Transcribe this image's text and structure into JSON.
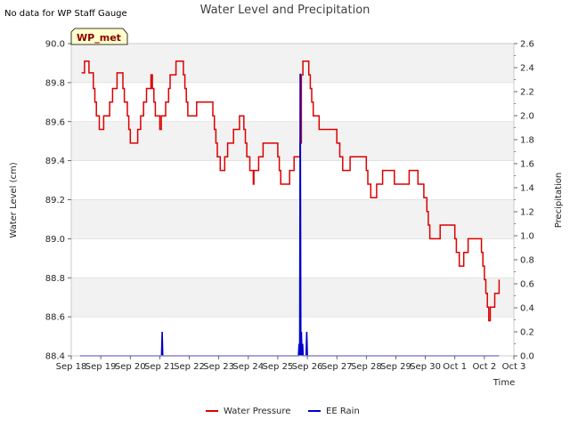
{
  "chart_data": {
    "type": "line",
    "title": "Water Level and Precipitation",
    "note": "No data for WP Staff Gauge",
    "badge": "WP_met",
    "xlabel": "Time",
    "ylabel_left": "Water Level (cm)",
    "ylabel_right": "Precipitation",
    "x_ticks": [
      "Sep 18",
      "Sep 19",
      "Sep 20",
      "Sep 21",
      "Sep 22",
      "Sep 23",
      "Sep 24",
      "Sep 25",
      "Sep 26",
      "Sep 27",
      "Sep 28",
      "Sep 29",
      "Sep 30",
      "Oct 1",
      "Oct 2",
      "Oct 3"
    ],
    "xlim_days": [
      0,
      15
    ],
    "ylim_left": [
      88.4,
      90.0
    ],
    "ylim_right": [
      0.0,
      2.6
    ],
    "y_ticks_left": [
      "88.4",
      "88.6",
      "88.8",
      "89.0",
      "89.2",
      "89.4",
      "89.6",
      "89.8",
      "90.0"
    ],
    "y_ticks_right": [
      "0.0",
      "0.2",
      "0.4",
      "0.6",
      "0.8",
      "1.0",
      "1.2",
      "1.4",
      "1.6",
      "1.8",
      "2.0",
      "2.2",
      "2.4",
      "2.6"
    ],
    "grid": true,
    "legend_position": "bottom-center",
    "series": [
      {
        "name": "Water Pressure",
        "color": "#dd0000",
        "axis": "left",
        "points": [
          [
            0.35,
            89.85
          ],
          [
            0.45,
            89.91
          ],
          [
            0.55,
            89.91
          ],
          [
            0.6,
            89.85
          ],
          [
            0.7,
            89.85
          ],
          [
            0.75,
            89.77
          ],
          [
            0.8,
            89.7
          ],
          [
            0.85,
            89.63
          ],
          [
            0.95,
            89.56
          ],
          [
            1.05,
            89.56
          ],
          [
            1.1,
            89.63
          ],
          [
            1.25,
            89.63
          ],
          [
            1.3,
            89.7
          ],
          [
            1.4,
            89.77
          ],
          [
            1.5,
            89.77
          ],
          [
            1.55,
            89.85
          ],
          [
            1.7,
            89.85
          ],
          [
            1.75,
            89.77
          ],
          [
            1.8,
            89.7
          ],
          [
            1.9,
            89.63
          ],
          [
            1.95,
            89.56
          ],
          [
            2.0,
            89.49
          ],
          [
            2.2,
            89.49
          ],
          [
            2.25,
            89.56
          ],
          [
            2.35,
            89.63
          ],
          [
            2.45,
            89.7
          ],
          [
            2.55,
            89.77
          ],
          [
            2.65,
            89.77
          ],
          [
            2.7,
            89.84
          ],
          [
            2.75,
            89.77
          ],
          [
            2.8,
            89.7
          ],
          [
            2.85,
            89.63
          ],
          [
            2.95,
            89.63
          ],
          [
            3.0,
            89.56
          ],
          [
            3.05,
            89.63
          ],
          [
            3.15,
            89.63
          ],
          [
            3.2,
            89.7
          ],
          [
            3.3,
            89.77
          ],
          [
            3.35,
            89.84
          ],
          [
            3.5,
            89.84
          ],
          [
            3.55,
            89.91
          ],
          [
            3.75,
            89.91
          ],
          [
            3.8,
            89.84
          ],
          [
            3.85,
            89.77
          ],
          [
            3.9,
            89.7
          ],
          [
            3.95,
            89.63
          ],
          [
            4.2,
            89.63
          ],
          [
            4.25,
            89.7
          ],
          [
            4.75,
            89.7
          ],
          [
            4.8,
            89.63
          ],
          [
            4.85,
            89.56
          ],
          [
            4.9,
            89.49
          ],
          [
            4.95,
            89.42
          ],
          [
            5.05,
            89.35
          ],
          [
            5.15,
            89.35
          ],
          [
            5.2,
            89.42
          ],
          [
            5.3,
            89.49
          ],
          [
            5.45,
            89.49
          ],
          [
            5.5,
            89.56
          ],
          [
            5.65,
            89.56
          ],
          [
            5.7,
            89.63
          ],
          [
            5.8,
            89.63
          ],
          [
            5.85,
            89.56
          ],
          [
            5.9,
            89.49
          ],
          [
            5.95,
            89.42
          ],
          [
            6.05,
            89.35
          ],
          [
            6.15,
            89.35
          ],
          [
            6.17,
            89.28
          ],
          [
            6.19,
            89.35
          ],
          [
            6.3,
            89.35
          ],
          [
            6.35,
            89.42
          ],
          [
            6.45,
            89.42
          ],
          [
            6.5,
            89.49
          ],
          [
            6.95,
            89.49
          ],
          [
            7.0,
            89.42
          ],
          [
            7.05,
            89.35
          ],
          [
            7.1,
            89.28
          ],
          [
            7.35,
            89.28
          ],
          [
            7.4,
            89.35
          ],
          [
            7.5,
            89.35
          ],
          [
            7.55,
            89.42
          ],
          [
            7.7,
            89.42
          ],
          [
            7.75,
            89.49
          ],
          [
            7.8,
            89.84
          ],
          [
            7.85,
            89.91
          ],
          [
            8.0,
            89.91
          ],
          [
            8.05,
            89.84
          ],
          [
            8.1,
            89.77
          ],
          [
            8.15,
            89.7
          ],
          [
            8.2,
            89.63
          ],
          [
            8.35,
            89.63
          ],
          [
            8.4,
            89.56
          ],
          [
            8.95,
            89.56
          ],
          [
            9.0,
            89.49
          ],
          [
            9.1,
            89.42
          ],
          [
            9.2,
            89.35
          ],
          [
            9.4,
            89.35
          ],
          [
            9.45,
            89.42
          ],
          [
            9.95,
            89.42
          ],
          [
            10.0,
            89.35
          ],
          [
            10.05,
            89.28
          ],
          [
            10.15,
            89.21
          ],
          [
            10.3,
            89.21
          ],
          [
            10.35,
            89.28
          ],
          [
            10.5,
            89.28
          ],
          [
            10.55,
            89.35
          ],
          [
            10.9,
            89.35
          ],
          [
            10.95,
            89.28
          ],
          [
            11.4,
            89.28
          ],
          [
            11.45,
            89.35
          ],
          [
            11.7,
            89.35
          ],
          [
            11.75,
            89.28
          ],
          [
            11.9,
            89.28
          ],
          [
            11.95,
            89.21
          ],
          [
            12.05,
            89.14
          ],
          [
            12.1,
            89.07
          ],
          [
            12.15,
            89.0
          ],
          [
            12.45,
            89.0
          ],
          [
            12.5,
            89.07
          ],
          [
            12.95,
            89.07
          ],
          [
            13.0,
            89.0
          ],
          [
            13.05,
            88.93
          ],
          [
            13.15,
            88.86
          ],
          [
            13.25,
            88.86
          ],
          [
            13.3,
            88.93
          ],
          [
            13.4,
            88.93
          ],
          [
            13.45,
            89.0
          ],
          [
            13.85,
            89.0
          ],
          [
            13.9,
            88.93
          ],
          [
            13.95,
            88.86
          ],
          [
            14.0,
            88.79
          ],
          [
            14.05,
            88.72
          ],
          [
            14.1,
            88.65
          ],
          [
            14.15,
            88.58
          ],
          [
            14.2,
            88.65
          ],
          [
            14.3,
            88.65
          ],
          [
            14.35,
            88.72
          ],
          [
            14.45,
            88.72
          ],
          [
            14.5,
            88.79
          ]
        ]
      },
      {
        "name": "EE Rain",
        "color": "#0000cc",
        "axis": "right",
        "points": [
          [
            0.3,
            0.0
          ],
          [
            3.06,
            0.0
          ],
          [
            3.08,
            0.2
          ],
          [
            3.1,
            0.0
          ],
          [
            7.7,
            0.0
          ],
          [
            7.72,
            0.1
          ],
          [
            7.74,
            0.0
          ],
          [
            7.76,
            2.35
          ],
          [
            7.78,
            0.0
          ],
          [
            7.8,
            0.2
          ],
          [
            7.82,
            0.0
          ],
          [
            7.84,
            0.1
          ],
          [
            7.86,
            0.0
          ],
          [
            7.96,
            0.0
          ],
          [
            7.98,
            0.2
          ],
          [
            8.0,
            0.0
          ],
          [
            14.5,
            0.0
          ]
        ]
      }
    ]
  }
}
